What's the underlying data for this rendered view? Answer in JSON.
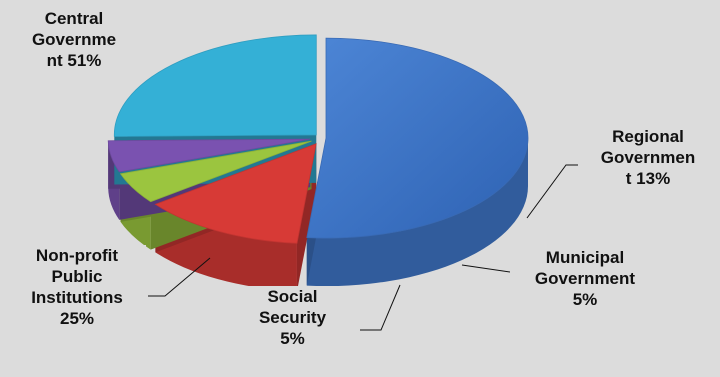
{
  "chart_data": {
    "type": "pie",
    "style": "3d-exploded",
    "title": "",
    "slices": [
      {
        "label": "Central Government",
        "value": 51,
        "display": "Central\nGovernme\nnt 51%",
        "color": "#3f76c8"
      },
      {
        "label": "Regional Government",
        "value": 13,
        "display": "Regional\nGovernmen\nt 13%",
        "color": "#d73a36"
      },
      {
        "label": "Municipal Government",
        "value": 5,
        "display": "Municipal\nGovernment\n5%",
        "color": "#9bc53f"
      },
      {
        "label": "Social Security",
        "value": 5,
        "display": "Social\nSecurity\n5%",
        "color": "#7a52b0"
      },
      {
        "label": "Non-profit Public Institutions",
        "value": 25,
        "display": "Non-profit\nPublic\nInstitutions\n25%",
        "color": "#34b0d6"
      }
    ],
    "legend": "none"
  }
}
